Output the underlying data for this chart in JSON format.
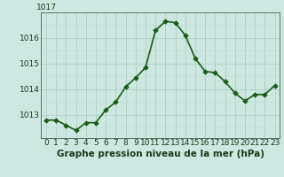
{
  "hours": [
    0,
    1,
    2,
    3,
    4,
    5,
    6,
    7,
    8,
    9,
    10,
    11,
    12,
    13,
    14,
    15,
    16,
    17,
    18,
    19,
    20,
    21,
    22,
    23
  ],
  "pressure": [
    1012.8,
    1012.8,
    1012.6,
    1012.4,
    1012.7,
    1012.7,
    1013.2,
    1013.5,
    1014.1,
    1014.45,
    1014.85,
    1016.3,
    1016.65,
    1016.6,
    1016.1,
    1015.2,
    1014.7,
    1014.65,
    1014.3,
    1013.85,
    1013.55,
    1013.8,
    1013.8,
    1014.15
  ],
  "line_color": "#1a5c1a",
  "marker_color": "#1a5c1a",
  "bg_color": "#cce8e0",
  "grid_color_major": "#aaccc4",
  "grid_color_minor": "#bbddd6",
  "xlabel": "Graphe pression niveau de la mer (hPa)",
  "xlabel_fontsize": 7.5,
  "yticks": [
    1013,
    1014,
    1015,
    1016
  ],
  "ylim": [
    1012.1,
    1017.0
  ],
  "xlim": [
    -0.5,
    23.5
  ],
  "tick_fontsize": 6.5,
  "line_width": 1.2,
  "marker_size": 2.8,
  "top_label": "1017"
}
